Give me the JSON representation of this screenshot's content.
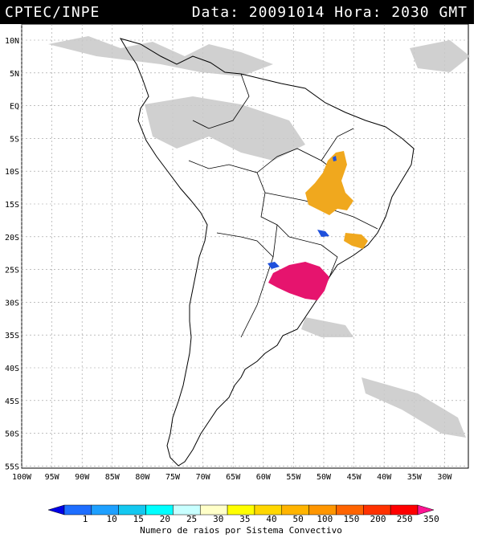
{
  "header": {
    "source": "CPTEC/INPE",
    "date_time": "Data: 20091014 Hora: 2030 GMT"
  },
  "map": {
    "lat_labels": [
      "10N",
      "5N",
      "EQ",
      "5S",
      "10S",
      "15S",
      "20S",
      "25S",
      "30S",
      "35S",
      "40S",
      "45S",
      "50S",
      "55S"
    ],
    "lon_labels": [
      "100W",
      "95W",
      "90W",
      "85W",
      "80W",
      "75W",
      "70W",
      "65W",
      "60W",
      "55W",
      "50W",
      "45W",
      "40W",
      "35W",
      "30W"
    ],
    "gridlines": true
  },
  "colorbar": {
    "title": "Numero de raios por Sistema Convectivo",
    "ticks": [
      "1",
      "10",
      "15",
      "20",
      "25",
      "30",
      "35",
      "40",
      "50",
      "100",
      "150",
      "200",
      "250",
      "350"
    ],
    "colors": [
      "#0000e6",
      "#1e6eff",
      "#1ea0ff",
      "#14c8f0",
      "#00ffff",
      "#c8ffff",
      "#ffffc8",
      "#ffff00",
      "#ffd700",
      "#ffb400",
      "#ff9600",
      "#ff6400",
      "#ff3200",
      "#ff0000",
      "#ff1493"
    ]
  },
  "systems": [
    {
      "name": "blue-small-1",
      "color": "#1e50dc"
    },
    {
      "name": "orange-large",
      "color": "#f0a81e"
    },
    {
      "name": "magenta-large",
      "color": "#e6146e"
    }
  ]
}
